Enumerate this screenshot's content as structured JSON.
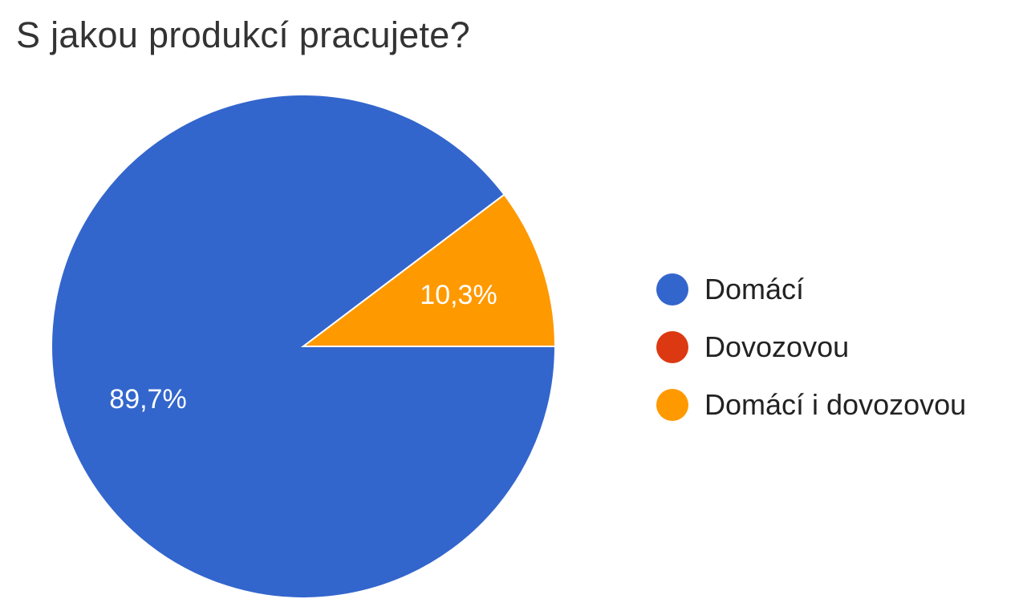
{
  "chart_data": {
    "type": "pie",
    "title": "S jakou produkcí pracujete?",
    "legend_position": "right",
    "slices": [
      {
        "label": "Domácí",
        "value": 89.7,
        "display": "89,7%",
        "color": "#3366cc"
      },
      {
        "label": "Dovozovou",
        "value": 0,
        "display": "",
        "color": "#dc3912"
      },
      {
        "label": "Domácí i dovozovou",
        "value": 10.3,
        "display": "10,3%",
        "color": "#ff9900"
      }
    ]
  }
}
